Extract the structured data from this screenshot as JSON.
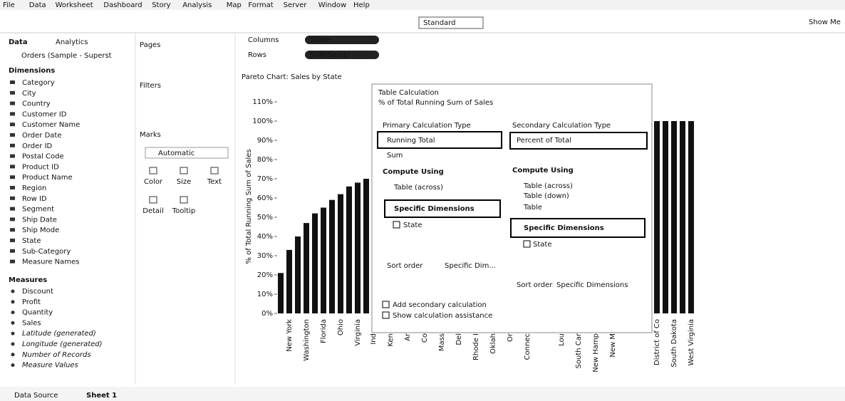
{
  "menu": [
    "File",
    "Data",
    "Worksheet",
    "Dashboard",
    "Story",
    "Analysis",
    "Map",
    "Format",
    "Server",
    "Window",
    "Help"
  ],
  "toolbar": {
    "fit": "Standard",
    "show_me": "Show Me"
  },
  "data_pane": {
    "tabs": [
      "Data",
      "Analytics"
    ],
    "source": "Orders (Sample - Superst",
    "dimensions_title": "Dimensions",
    "dimensions": [
      "Category",
      "City",
      "Country",
      "Customer ID",
      "Customer Name",
      "Order Date",
      "Order ID",
      "Postal Code",
      "Product ID",
      "Product Name",
      "Region",
      "Row ID",
      "Segment",
      "Ship Date",
      "Ship Mode",
      "State",
      "Sub-Category",
      "Measure Names"
    ],
    "measures_title": "Measures",
    "measures": [
      "Discount",
      "Profit",
      "Quantity",
      "Sales",
      "Latitude (generated)",
      "Longitude (generated)",
      "Number of Records",
      "Measure Values"
    ]
  },
  "shelves": {
    "pages": "Pages",
    "filters": "Filters",
    "marks": "Marks",
    "mark_type": "Automatic",
    "mark_buttons": [
      "Color",
      "Size",
      "Text",
      "Detail",
      "Tooltip"
    ],
    "columns_label": "Columns",
    "columns_pill": "State",
    "rows_label": "Rows",
    "rows_pill": "SUM(Sales)"
  },
  "chart": {
    "title": "Pareto Chart: Sales by State",
    "y_axis_label": "% of Total Running Sum of Sales",
    "yticks": [
      {
        "value": 0,
        "label": "0%"
      },
      {
        "value": 10,
        "label": "10%"
      },
      {
        "value": 20,
        "label": "20%"
      },
      {
        "value": 30,
        "label": "30%"
      },
      {
        "value": 40,
        "label": "40%"
      },
      {
        "value": 50,
        "label": "50%"
      },
      {
        "value": 60,
        "label": "60%"
      },
      {
        "value": 70,
        "label": "70%"
      },
      {
        "value": 80,
        "label": "80%"
      },
      {
        "value": 90,
        "label": "90%"
      },
      {
        "value": 100,
        "label": "100%"
      },
      {
        "value": 110,
        "label": "110%"
      }
    ],
    "left_bars": {
      "values": [
        21,
        33,
        40,
        47,
        52,
        55,
        59,
        62,
        66,
        68,
        70
      ],
      "categories": [
        null,
        "New York",
        null,
        "Washington",
        null,
        "Florida",
        null,
        "Ohio",
        null,
        "Virginia",
        null
      ]
    },
    "right_bars": {
      "values": [
        100,
        100,
        100,
        100,
        100
      ],
      "categories": [
        "District of Co",
        null,
        "South Dakota",
        null,
        "West Virginia"
      ]
    },
    "hidden_labels": [
      "Ind",
      "Ken",
      "Ar",
      "Co",
      "Mass",
      "Del",
      "Rhode I",
      "Oklah",
      "Or",
      "Connec",
      "Lou",
      "South Car",
      "New Hamp",
      "New M"
    ]
  },
  "dialog": {
    "title": "Table Calculation",
    "subtitle": "% of Total Running Sum of Sales",
    "primary": {
      "heading": "Primary Calculation Type",
      "type": "Running Total",
      "aggregation": "Sum",
      "compute_using": "Compute Using",
      "options": [
        "Table (across)",
        "Specific Dimensions"
      ],
      "field": "State",
      "sort_label": "Sort order",
      "sort_value": "Specific Dim..."
    },
    "secondary": {
      "heading": "Secondary Calculation Type",
      "type": "Percent of Total",
      "compute_using": "Compute Using",
      "options": [
        "Table (across)",
        "Table (down)",
        "Table",
        "Specific Dimensions"
      ],
      "field": "State",
      "sort_label": "Sort order",
      "sort_value": "Specific Dimensions"
    },
    "checks": [
      "Add secondary calculation",
      "Show calculation assistance"
    ]
  },
  "bottom": {
    "data_source": "Data Source",
    "sheet": "Sheet 1"
  }
}
